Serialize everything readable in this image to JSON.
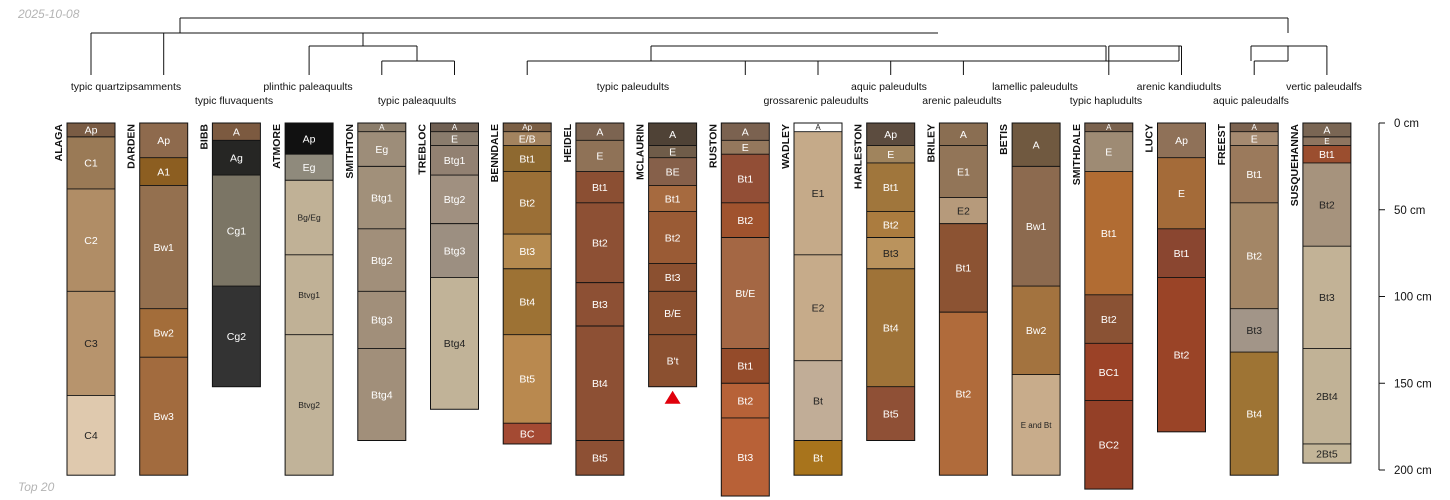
{
  "page": {
    "date_label": "2025-10-08",
    "footer_label": "Top 20"
  },
  "chart_data": {
    "type": "soil-profile-sketch",
    "title": "",
    "depth_unit": "cm",
    "depth_max": 200,
    "depth_axis": {
      "ticks": [
        0,
        50,
        100,
        150,
        200
      ],
      "tick_labels": [
        "0 cm",
        "50 cm",
        "100 cm",
        "150 cm",
        "200 cm"
      ]
    },
    "dendrogram": {
      "labels": [
        {
          "text": "typic quartzipsamments",
          "row": 1
        },
        {
          "text": "typic fluvaquents",
          "row": 2
        },
        {
          "text": "plinthic paleaquults",
          "row": 1
        },
        {
          "text": "typic paleaquults",
          "row": 2
        },
        {
          "text": "typic paleudults",
          "row": 1
        },
        {
          "text": "grossarenic paleudults",
          "row": 2
        },
        {
          "text": "aquic paleudults",
          "row": 1
        },
        {
          "text": "arenic paleudults",
          "row": 2
        },
        {
          "text": "lamellic paleudults",
          "row": 1
        },
        {
          "text": "typic hapludults",
          "row": 2
        },
        {
          "text": "arenic kandiudults",
          "row": 1
        },
        {
          "text": "aquic paleudalfs",
          "row": 2
        },
        {
          "text": "vertic paleudalfs",
          "row": 1
        }
      ]
    },
    "profiles": [
      {
        "name": "ALAGA",
        "horizons": [
          {
            "name": "Ap",
            "top": 0,
            "bottom": 8,
            "color": "#7a5c44"
          },
          {
            "name": "C1",
            "top": 8,
            "bottom": 38,
            "color": "#9a7a56"
          },
          {
            "name": "C2",
            "top": 38,
            "bottom": 97,
            "color": "#b08d66"
          },
          {
            "name": "C3",
            "top": 97,
            "bottom": 157,
            "color": "#b7946d"
          },
          {
            "name": "C4",
            "top": 157,
            "bottom": 203,
            "color": "#dfc9ae"
          }
        ]
      },
      {
        "name": "DARDEN",
        "horizons": [
          {
            "name": "Ap",
            "top": 0,
            "bottom": 20,
            "color": "#8e6a4d"
          },
          {
            "name": "A1",
            "top": 20,
            "bottom": 36,
            "color": "#8c5e21"
          },
          {
            "name": "Bw1",
            "top": 36,
            "bottom": 107,
            "color": "#94704f"
          },
          {
            "name": "Bw2",
            "top": 107,
            "bottom": 135,
            "color": "#a36d3a"
          },
          {
            "name": "Bw3",
            "top": 135,
            "bottom": 203,
            "color": "#a26b3e"
          }
        ]
      },
      {
        "name": "BIBB",
        "horizons": [
          {
            "name": "A",
            "top": 0,
            "bottom": 10,
            "color": "#7c5a40"
          },
          {
            "name": "Ag",
            "top": 10,
            "bottom": 30,
            "color": "#262624"
          },
          {
            "name": "Cg1",
            "top": 30,
            "bottom": 94,
            "color": "#7b7565"
          },
          {
            "name": "Cg2",
            "top": 94,
            "bottom": 152,
            "color": "#333333"
          }
        ]
      },
      {
        "name": "ATMORE",
        "horizons": [
          {
            "name": "Ap",
            "top": 0,
            "bottom": 18,
            "color": "#111111"
          },
          {
            "name": "Eg",
            "top": 18,
            "bottom": 33,
            "color": "#8f8a7c"
          },
          {
            "name": "Bg/Eg",
            "top": 33,
            "bottom": 76,
            "color": "#c0b196"
          },
          {
            "name": "Btvg1",
            "top": 76,
            "bottom": 122,
            "color": "#c0b196"
          },
          {
            "name": "Btvg2",
            "top": 122,
            "bottom": 203,
            "color": "#c1b399"
          }
        ]
      },
      {
        "name": "SMITHTON",
        "horizons": [
          {
            "name": "A",
            "top": 0,
            "bottom": 5,
            "color": "#8b7d6b"
          },
          {
            "name": "Eg",
            "top": 5,
            "bottom": 25,
            "color": "#9d8d79"
          },
          {
            "name": "Btg1",
            "top": 25,
            "bottom": 61,
            "color": "#a1907a"
          },
          {
            "name": "Btg2",
            "top": 61,
            "bottom": 97,
            "color": "#a18f7a"
          },
          {
            "name": "Btg3",
            "top": 97,
            "bottom": 130,
            "color": "#a18f7a"
          },
          {
            "name": "Btg4",
            "top": 130,
            "bottom": 183,
            "color": "#a18f7a"
          }
        ]
      },
      {
        "name": "TREBLOC",
        "horizons": [
          {
            "name": "A",
            "top": 0,
            "bottom": 5,
            "color": "#6f5f52"
          },
          {
            "name": "E",
            "top": 5,
            "bottom": 13,
            "color": "#8a7c6d"
          },
          {
            "name": "Btg1",
            "top": 13,
            "bottom": 30,
            "color": "#928172"
          },
          {
            "name": "Btg2",
            "top": 30,
            "bottom": 58,
            "color": "#a09080"
          },
          {
            "name": "Btg3",
            "top": 58,
            "bottom": 89,
            "color": "#9c8f81"
          },
          {
            "name": "Btg4",
            "top": 89,
            "bottom": 165,
            "color": "#c1b398"
          }
        ]
      },
      {
        "name": "BENNDALE",
        "horizons": [
          {
            "name": "Ap",
            "top": 0,
            "bottom": 5,
            "color": "#7b5f45"
          },
          {
            "name": "E/B",
            "top": 5,
            "bottom": 13,
            "color": "#a3835f"
          },
          {
            "name": "Bt1",
            "top": 13,
            "bottom": 28,
            "color": "#8e6930"
          },
          {
            "name": "Bt2",
            "top": 28,
            "bottom": 64,
            "color": "#9b6f36"
          },
          {
            "name": "Bt3",
            "top": 64,
            "bottom": 84,
            "color": "#b58a4f"
          },
          {
            "name": "Bt4",
            "top": 84,
            "bottom": 122,
            "color": "#9d7234"
          },
          {
            "name": "Bt5",
            "top": 122,
            "bottom": 173,
            "color": "#b9894f"
          },
          {
            "name": "BC",
            "top": 173,
            "bottom": 185,
            "color": "#a44a33"
          }
        ]
      },
      {
        "name": "HEIDEL",
        "horizons": [
          {
            "name": "A",
            "top": 0,
            "bottom": 10,
            "color": "#7c6451"
          },
          {
            "name": "E",
            "top": 10,
            "bottom": 28,
            "color": "#8f7257"
          },
          {
            "name": "Bt1",
            "top": 28,
            "bottom": 46,
            "color": "#8b4f33"
          },
          {
            "name": "Bt2",
            "top": 46,
            "bottom": 92,
            "color": "#8d5034"
          },
          {
            "name": "Bt3",
            "top": 92,
            "bottom": 117,
            "color": "#8d5034"
          },
          {
            "name": "Bt4",
            "top": 117,
            "bottom": 183,
            "color": "#8d5034"
          },
          {
            "name": "Bt5",
            "top": 183,
            "bottom": 203,
            "color": "#8d5034"
          }
        ]
      },
      {
        "name": "MCLAURIN",
        "truncated": true,
        "horizons": [
          {
            "name": "A",
            "top": 0,
            "bottom": 13,
            "color": "#4f4236"
          },
          {
            "name": "E",
            "top": 13,
            "bottom": 20,
            "color": "#6f5c49"
          },
          {
            "name": "BE",
            "top": 20,
            "bottom": 36,
            "color": "#86604a"
          },
          {
            "name": "Bt1",
            "top": 36,
            "bottom": 51,
            "color": "#a66a3f"
          },
          {
            "name": "Bt2",
            "top": 51,
            "bottom": 81,
            "color": "#9a5b35"
          },
          {
            "name": "Bt3",
            "top": 81,
            "bottom": 97,
            "color": "#8b5030"
          },
          {
            "name": "B/E",
            "top": 97,
            "bottom": 122,
            "color": "#8b5030"
          },
          {
            "name": "B't",
            "top": 122,
            "bottom": 152,
            "color": "#8b5030"
          }
        ]
      },
      {
        "name": "RUSTON",
        "horizons": [
          {
            "name": "A",
            "top": 0,
            "bottom": 10,
            "color": "#7b6250"
          },
          {
            "name": "E",
            "top": 10,
            "bottom": 18,
            "color": "#94785d"
          },
          {
            "name": "Bt1",
            "top": 18,
            "bottom": 46,
            "color": "#924e36"
          },
          {
            "name": "Bt2",
            "top": 46,
            "bottom": 66,
            "color": "#a0532e"
          },
          {
            "name": "Bt/E",
            "top": 66,
            "bottom": 130,
            "color": "#a46744"
          },
          {
            "name": "Bt1",
            "top": 130,
            "bottom": 150,
            "color": "#944b2a"
          },
          {
            "name": "Bt2",
            "top": 150,
            "bottom": 170,
            "color": "#b76238"
          },
          {
            "name": "Bt3",
            "top": 170,
            "bottom": 215,
            "color": "#b86137"
          }
        ]
      },
      {
        "name": "WADLEY",
        "horizons": [
          {
            "name": "A",
            "top": 0,
            "bottom": 5,
            "color": "#ffffff"
          },
          {
            "name": "E1",
            "top": 5,
            "bottom": 76,
            "color": "#c5aa89"
          },
          {
            "name": "E2",
            "top": 76,
            "bottom": 137,
            "color": "#c6ab8a"
          },
          {
            "name": "Bt",
            "top": 137,
            "bottom": 183,
            "color": "#c1ad97"
          },
          {
            "name": "Bt",
            "top": 183,
            "bottom": 203,
            "color": "#a8741c"
          }
        ]
      },
      {
        "name": "HARLESTON",
        "horizons": [
          {
            "name": "Ap",
            "top": 0,
            "bottom": 13,
            "color": "#5c4c3f"
          },
          {
            "name": "E",
            "top": 13,
            "bottom": 23,
            "color": "#a0845d"
          },
          {
            "name": "Bt1",
            "top": 23,
            "bottom": 51,
            "color": "#a0763c"
          },
          {
            "name": "Bt2",
            "top": 51,
            "bottom": 66,
            "color": "#ab7c3f"
          },
          {
            "name": "Bt3",
            "top": 66,
            "bottom": 84,
            "color": "#ba935d"
          },
          {
            "name": "Bt4",
            "top": 84,
            "bottom": 152,
            "color": "#9f7338"
          },
          {
            "name": "Bt5",
            "top": 152,
            "bottom": 183,
            "color": "#8f5036"
          }
        ]
      },
      {
        "name": "BRILEY",
        "horizons": [
          {
            "name": "A",
            "top": 0,
            "bottom": 13,
            "color": "#8a6e52"
          },
          {
            "name": "E1",
            "top": 13,
            "bottom": 43,
            "color": "#927558"
          },
          {
            "name": "E2",
            "top": 43,
            "bottom": 58,
            "color": "#b69a7b"
          },
          {
            "name": "Bt1",
            "top": 58,
            "bottom": 109,
            "color": "#8c5333"
          },
          {
            "name": "Bt2",
            "top": 109,
            "bottom": 203,
            "color": "#b06b3b"
          }
        ]
      },
      {
        "name": "BETIS",
        "horizons": [
          {
            "name": "A",
            "top": 0,
            "bottom": 25,
            "color": "#705940"
          },
          {
            "name": "Bw1",
            "top": 25,
            "bottom": 94,
            "color": "#8c6a4f"
          },
          {
            "name": "Bw2",
            "top": 94,
            "bottom": 145,
            "color": "#a3733f"
          },
          {
            "name": "E and Bt",
            "top": 145,
            "bottom": 203,
            "color": "#c8ac8b"
          }
        ]
      },
      {
        "name": "SMITHDALE",
        "horizons": [
          {
            "name": "A",
            "top": 0,
            "bottom": 5,
            "color": "#7a624e"
          },
          {
            "name": "E",
            "top": 5,
            "bottom": 28,
            "color": "#9e8b74"
          },
          {
            "name": "Bt1",
            "top": 28,
            "bottom": 99,
            "color": "#b16c33"
          },
          {
            "name": "Bt2",
            "top": 99,
            "bottom": 127,
            "color": "#8a5234"
          },
          {
            "name": "BC1",
            "top": 127,
            "bottom": 160,
            "color": "#9b4227"
          },
          {
            "name": "BC2",
            "top": 160,
            "bottom": 211,
            "color": "#944027"
          }
        ]
      },
      {
        "name": "LUCY",
        "horizons": [
          {
            "name": "Ap",
            "top": 0,
            "bottom": 20,
            "color": "#8f7158"
          },
          {
            "name": "E",
            "top": 20,
            "bottom": 61,
            "color": "#a46b39"
          },
          {
            "name": "Bt1",
            "top": 61,
            "bottom": 89,
            "color": "#8a4630"
          },
          {
            "name": "Bt2",
            "top": 89,
            "bottom": 178,
            "color": "#9a4427"
          }
        ]
      },
      {
        "name": "FREEST",
        "horizons": [
          {
            "name": "A",
            "top": 0,
            "bottom": 5,
            "color": "#7b624f"
          },
          {
            "name": "E",
            "top": 5,
            "bottom": 13,
            "color": "#a58a70"
          },
          {
            "name": "Bt1",
            "top": 13,
            "bottom": 46,
            "color": "#9b7a5c"
          },
          {
            "name": "Bt2",
            "top": 46,
            "bottom": 107,
            "color": "#a38666"
          },
          {
            "name": "Bt3",
            "top": 107,
            "bottom": 132,
            "color": "#a29588"
          },
          {
            "name": "Bt4",
            "top": 132,
            "bottom": 203,
            "color": "#9e7434"
          }
        ]
      },
      {
        "name": "SUSQUEHANNA",
        "horizons": [
          {
            "name": "A",
            "top": 0,
            "bottom": 8,
            "color": "#7a6654"
          },
          {
            "name": "E",
            "top": 8,
            "bottom": 13,
            "color": "#8e7560"
          },
          {
            "name": "Bt1",
            "top": 13,
            "bottom": 23,
            "color": "#9b4e2f"
          },
          {
            "name": "Bt2",
            "top": 23,
            "bottom": 71,
            "color": "#a6937d"
          },
          {
            "name": "Bt3",
            "top": 71,
            "bottom": 130,
            "color": "#c2b296"
          },
          {
            "name": "2Bt4",
            "top": 130,
            "bottom": 185,
            "color": "#c1b296"
          },
          {
            "name": "2Bt5",
            "top": 185,
            "bottom": 196,
            "color": "#c3b598"
          }
        ]
      }
    ]
  }
}
